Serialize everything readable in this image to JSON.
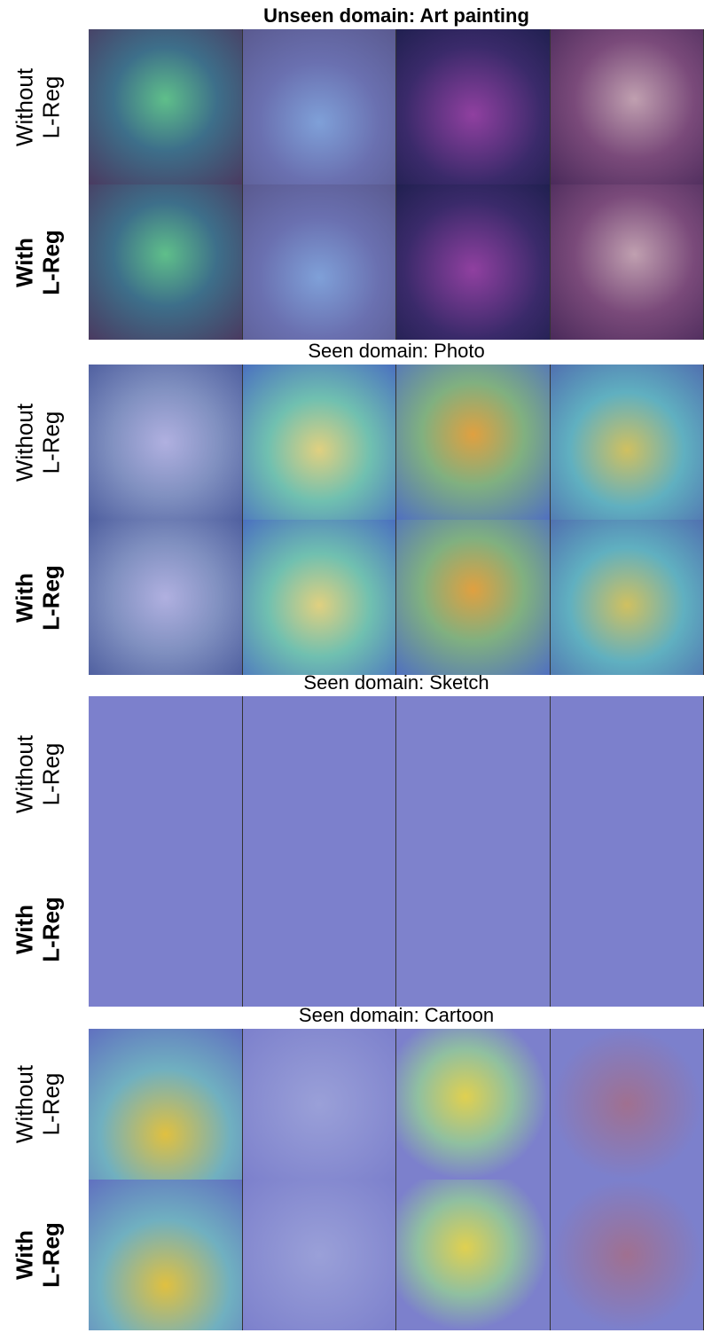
{
  "sections": [
    {
      "title": "Unseen domain: Art painting",
      "rows": [
        {
          "label": [
            "Without",
            "L-Reg"
          ]
        },
        {
          "label": [
            "With",
            "L-Reg"
          ]
        }
      ]
    },
    {
      "title": "Seen domain: Photo",
      "rows": [
        {
          "label": [
            "Without",
            "L-Reg"
          ]
        },
        {
          "label": [
            "With",
            "L-Reg"
          ]
        }
      ]
    },
    {
      "title": "Seen domain: Sketch",
      "rows": [
        {
          "label": [
            "Without",
            "L-Reg"
          ]
        },
        {
          "label": [
            "With",
            "L-Reg"
          ]
        }
      ]
    },
    {
      "title": "Seen domain: Cartoon",
      "rows": [
        {
          "label": [
            "Without",
            "L-Reg"
          ]
        },
        {
          "label": [
            "With",
            "L-Reg"
          ]
        }
      ]
    }
  ]
}
